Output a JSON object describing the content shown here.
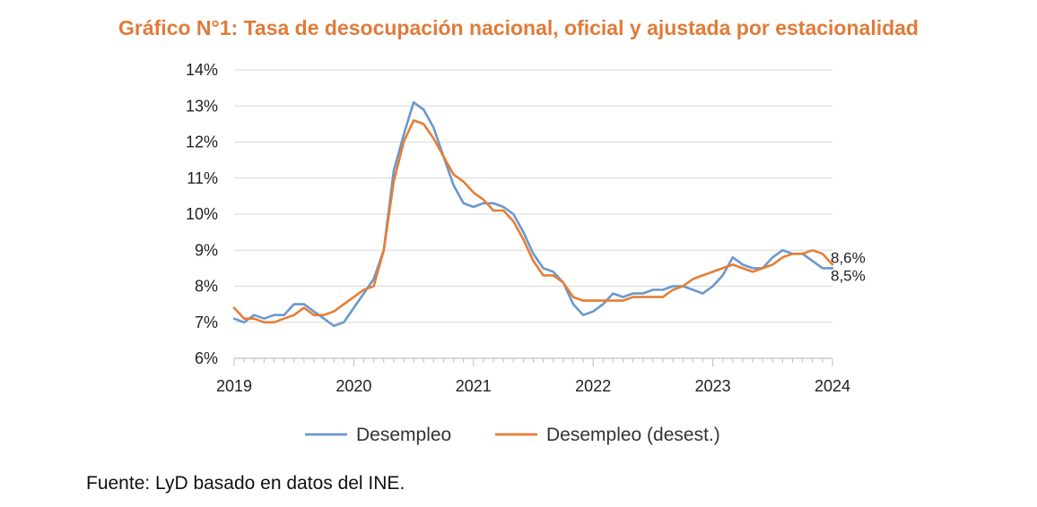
{
  "chart_data": {
    "type": "line",
    "title": "Gráfico N°1: Tasa de desocupación nacional, oficial y ajustada por estacionalidad",
    "xlabel": "",
    "ylabel": "",
    "xlim": [
      2019.0,
      2024.0
    ],
    "ylim": [
      6,
      14
    ],
    "y_ticks": [
      6,
      7,
      8,
      9,
      10,
      11,
      12,
      13,
      14
    ],
    "y_tick_labels": [
      "6%",
      "7%",
      "8%",
      "9%",
      "10%",
      "11%",
      "12%",
      "13%",
      "14%"
    ],
    "x_ticks": [
      2019,
      2020,
      2021,
      2022,
      2023,
      2024
    ],
    "x_tick_labels": [
      "2019",
      "2020",
      "2021",
      "2022",
      "2023",
      "2024"
    ],
    "grid": "horizontal",
    "legend_position": "bottom",
    "x": [
      "2019-01",
      "2019-02",
      "2019-03",
      "2019-04",
      "2019-05",
      "2019-06",
      "2019-07",
      "2019-08",
      "2019-09",
      "2019-10",
      "2019-11",
      "2019-12",
      "2020-01",
      "2020-02",
      "2020-03",
      "2020-04",
      "2020-05",
      "2020-06",
      "2020-07",
      "2020-08",
      "2020-09",
      "2020-10",
      "2020-11",
      "2020-12",
      "2021-01",
      "2021-02",
      "2021-03",
      "2021-04",
      "2021-05",
      "2021-06",
      "2021-07",
      "2021-08",
      "2021-09",
      "2021-10",
      "2021-11",
      "2021-12",
      "2022-01",
      "2022-02",
      "2022-03",
      "2022-04",
      "2022-05",
      "2022-06",
      "2022-07",
      "2022-08",
      "2022-09",
      "2022-10",
      "2022-11",
      "2022-12",
      "2023-01",
      "2023-02",
      "2023-03",
      "2023-04",
      "2023-05",
      "2023-06",
      "2023-07",
      "2023-08",
      "2023-09",
      "2023-10",
      "2023-11",
      "2023-12",
      "2024-01"
    ],
    "series": [
      {
        "name": "Desempleo",
        "color": "#6A98CC",
        "values": [
          7.1,
          7.0,
          7.2,
          7.1,
          7.2,
          7.2,
          7.5,
          7.5,
          7.3,
          7.1,
          6.9,
          7.0,
          7.4,
          7.8,
          8.2,
          9.0,
          11.2,
          12.2,
          13.1,
          12.9,
          12.4,
          11.6,
          10.8,
          10.3,
          10.2,
          10.3,
          10.3,
          10.2,
          10.0,
          9.5,
          8.9,
          8.5,
          8.4,
          8.1,
          7.5,
          7.2,
          7.3,
          7.5,
          7.8,
          7.7,
          7.8,
          7.8,
          7.9,
          7.9,
          8.0,
          8.0,
          7.9,
          7.8,
          8.0,
          8.3,
          8.8,
          8.6,
          8.5,
          8.5,
          8.8,
          9.0,
          8.9,
          8.9,
          8.7,
          8.5,
          8.5
        ]
      },
      {
        "name": "Desempleo (desest.)",
        "color": "#E67E36",
        "values": [
          7.4,
          7.1,
          7.1,
          7.0,
          7.0,
          7.1,
          7.2,
          7.4,
          7.2,
          7.2,
          7.3,
          7.5,
          7.7,
          7.9,
          8.0,
          9.0,
          10.9,
          12.0,
          12.6,
          12.5,
          12.1,
          11.6,
          11.1,
          10.9,
          10.6,
          10.4,
          10.1,
          10.1,
          9.8,
          9.3,
          8.7,
          8.3,
          8.3,
          8.1,
          7.7,
          7.6,
          7.6,
          7.6,
          7.6,
          7.6,
          7.7,
          7.7,
          7.7,
          7.7,
          7.9,
          8.0,
          8.2,
          8.3,
          8.4,
          8.5,
          8.6,
          8.5,
          8.4,
          8.5,
          8.6,
          8.8,
          8.9,
          8.9,
          9.0,
          8.9,
          8.6
        ]
      }
    ],
    "end_labels": [
      {
        "text": "8,6%",
        "series": "Desempleo (desest.)"
      },
      {
        "text": "8,5%",
        "series": "Desempleo"
      }
    ]
  },
  "source_note": "Fuente: LyD basado en datos del INE."
}
